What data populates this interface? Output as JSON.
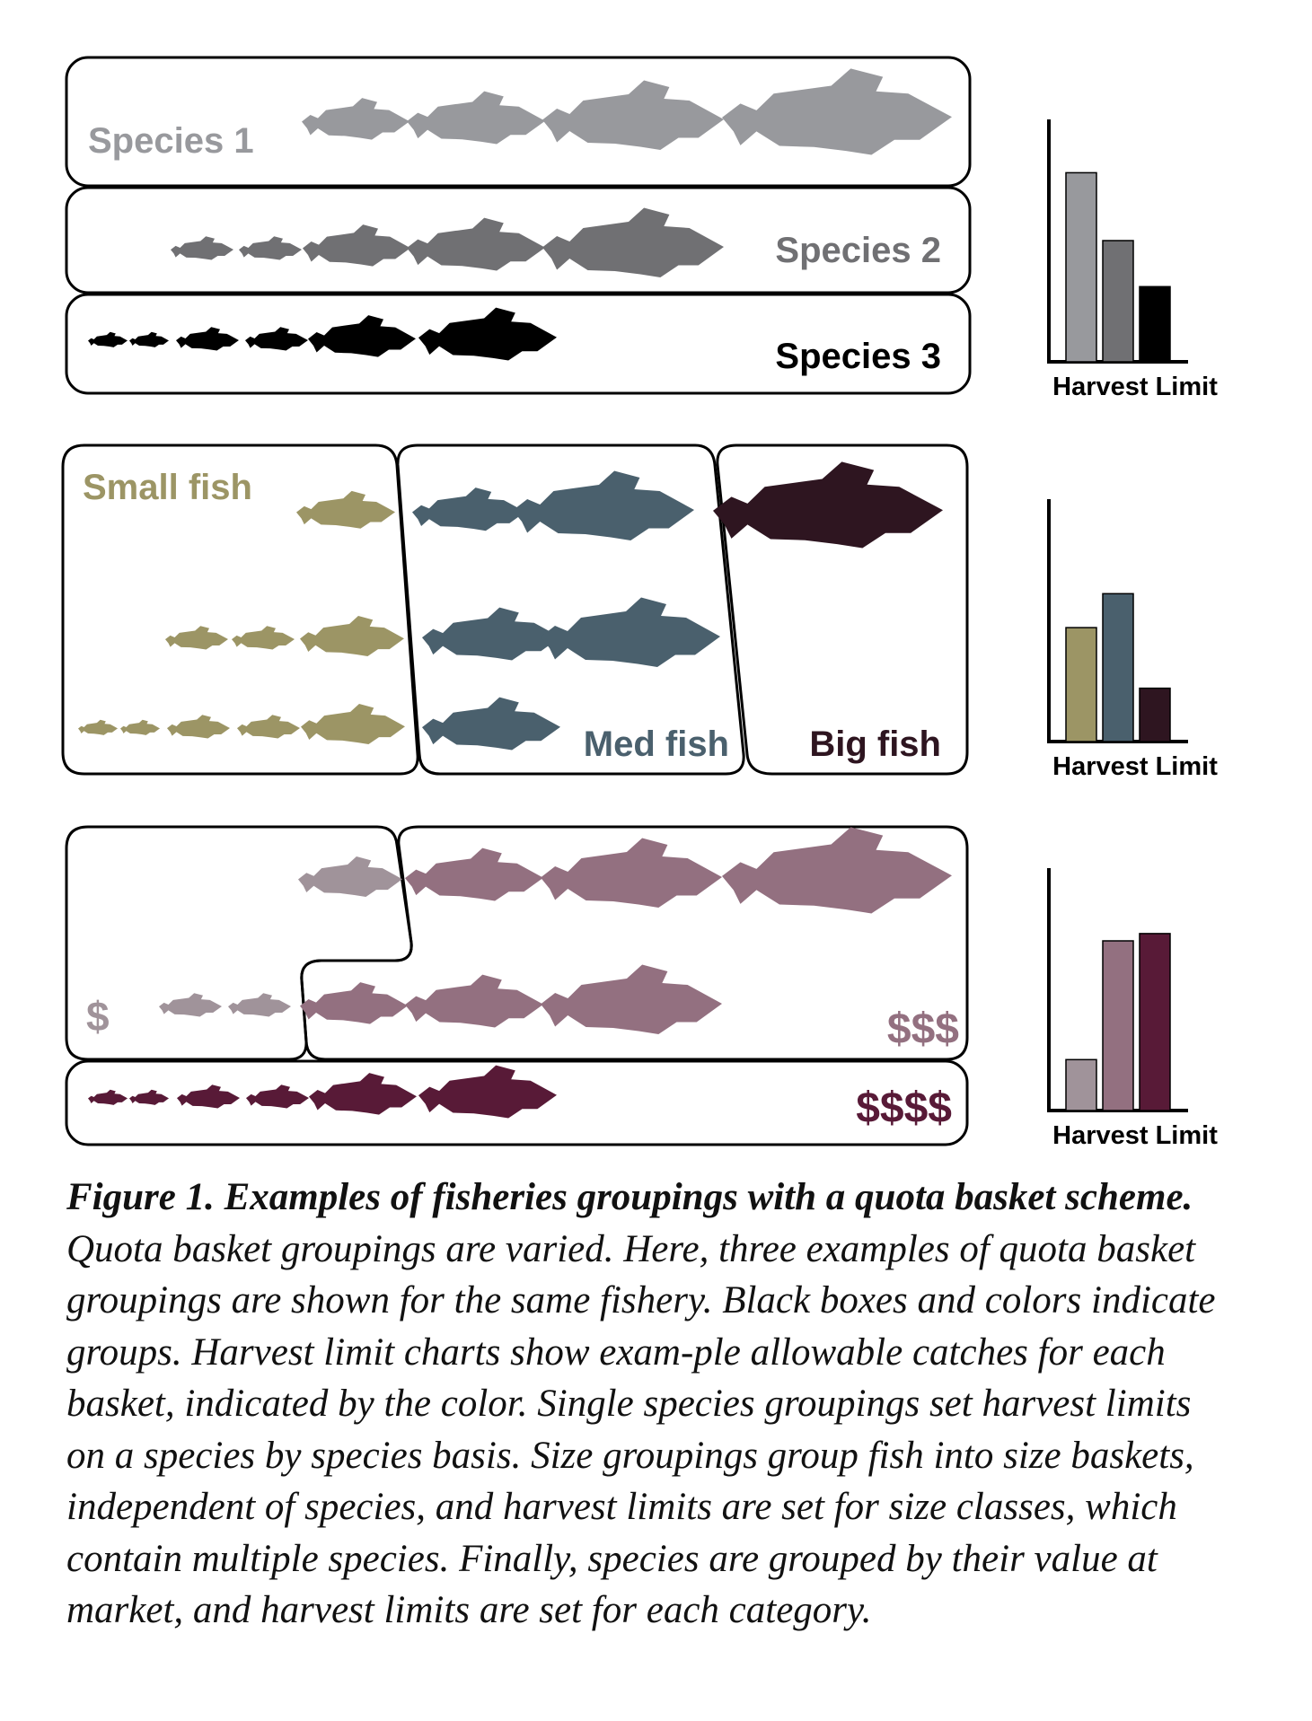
{
  "colors": {
    "species1": "#98999d",
    "species2": "#707073",
    "species3": "#000000",
    "small": "#9c9565",
    "medium": "#4a606d",
    "big": "#2e1520",
    "value_low": "#a0939a",
    "value_mid": "#937080",
    "value_high": "#581a37",
    "outline": "#000000"
  },
  "panels": {
    "species": {
      "rows": [
        {
          "label": "Species 1",
          "color_key": "species1"
        },
        {
          "label": "Species 2",
          "color_key": "species2"
        },
        {
          "label": "Species 3",
          "color_key": "species3"
        }
      ],
      "chart": {
        "xlabel": "Harvest Limit",
        "values": [
          0.78,
          0.5,
          0.31
        ],
        "color_keys": [
          "species1",
          "species2",
          "species3"
        ]
      }
    },
    "size": {
      "labels": {
        "small": "Small fish",
        "medium": "Med fish",
        "big": "Big fish"
      },
      "chart": {
        "xlabel": "Harvest Limit",
        "values": [
          0.47,
          0.61,
          0.22
        ],
        "color_keys": [
          "small",
          "medium",
          "big"
        ]
      }
    },
    "value": {
      "labels": {
        "low": "$",
        "mid": "$$$",
        "high": "$$$$"
      },
      "chart": {
        "xlabel": "Harvest Limit",
        "values": [
          0.21,
          0.7,
          0.73
        ],
        "color_keys": [
          "value_low",
          "value_mid",
          "value_high"
        ]
      }
    }
  },
  "caption": {
    "bold": "Figure 1. Examples of fisheries groupings with a quota basket scheme.",
    "text": " Quota basket groupings are varied. Here, three examples of quota basket groupings are shown for the same fishery. Black boxes and colors indicate groups. Harvest limit charts show exam-ple allowable catches for each basket, indicated by the color. Single species groupings set harvest limits on a species by species basis. Size groupings group fish into size baskets, independent of species, and harvest limits are set for size classes, which contain multiple species. Finally, species are grouped by their value at market, and harvest limits are set for each category."
  }
}
